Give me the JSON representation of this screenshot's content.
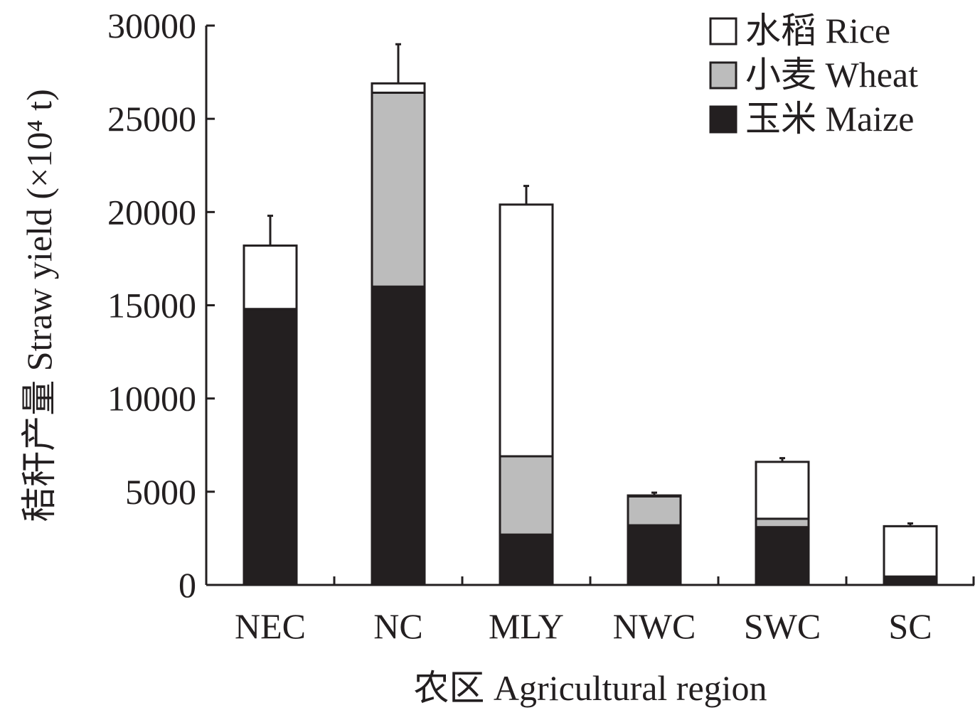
{
  "chart_data": {
    "type": "bar",
    "stacked": true,
    "categories": [
      "NEC",
      "NC",
      "MLY",
      "NWC",
      "SWC",
      "SC"
    ],
    "series": [
      {
        "name": "玉米 Maize",
        "color": "#231f20",
        "values": [
          14800,
          16000,
          2700,
          3200,
          3100,
          450
        ]
      },
      {
        "name": "小麦 Wheat",
        "color": "#bcbcbc",
        "values": [
          0,
          10400,
          4200,
          1550,
          450,
          0
        ]
      },
      {
        "name": "水稻 Rice",
        "color": "#ffffff",
        "values": [
          3400,
          500,
          13500,
          50,
          3050,
          2700
        ]
      }
    ],
    "error_bar_upper": [
      19800,
      29000,
      21400,
      4950,
      6800,
      3300
    ],
    "xlabel": "农区 Agricultural region",
    "ylabel": "秸秆产量 Straw yield (×10⁴ t)",
    "ylim": [
      0,
      30000
    ],
    "yticks": [
      "0",
      "5000",
      "10000",
      "15000",
      "20000",
      "25000",
      "30000"
    ],
    "legend_position": "top-right",
    "grid": false
  }
}
